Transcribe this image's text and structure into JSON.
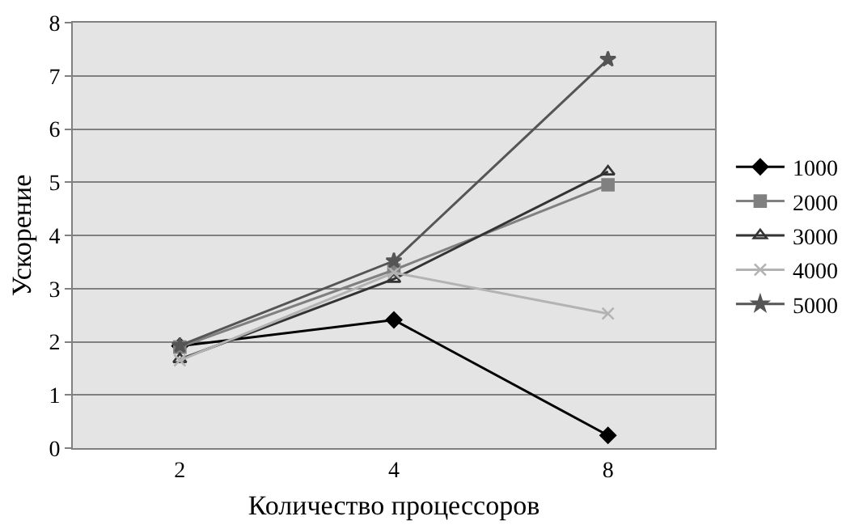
{
  "chart_data": {
    "type": "line",
    "xlabel": "Количество процессоров",
    "ylabel": "Ускорение",
    "categories": [
      "2",
      "4",
      "8"
    ],
    "series": [
      {
        "name": "1000",
        "color": "#000000",
        "marker": "diamond",
        "values": [
          1.92,
          2.41,
          0.24
        ]
      },
      {
        "name": "2000",
        "color": "#808080",
        "marker": "square",
        "values": [
          1.9,
          3.35,
          4.95
        ]
      },
      {
        "name": "3000",
        "color": "#333333",
        "marker": "triangle",
        "values": [
          1.67,
          3.18,
          5.2
        ]
      },
      {
        "name": "4000",
        "color": "#b3b3b3",
        "marker": "cross",
        "values": [
          1.65,
          3.3,
          2.53
        ]
      },
      {
        "name": "5000",
        "color": "#555555",
        "marker": "star",
        "values": [
          1.93,
          3.52,
          7.31
        ]
      }
    ],
    "ylim": [
      0,
      8
    ],
    "yticks": [
      0,
      1,
      2,
      3,
      4,
      5,
      6,
      7,
      8
    ],
    "grid": "y",
    "legend": "right",
    "line_style": "solid"
  }
}
